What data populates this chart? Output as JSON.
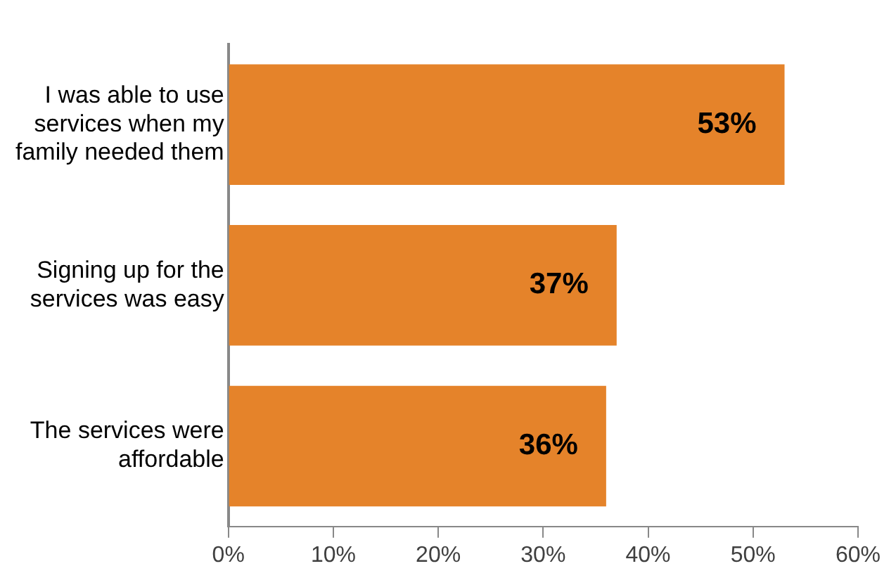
{
  "chart_data": {
    "type": "bar",
    "orientation": "horizontal",
    "categories": [
      "I was able to use services when my family needed them",
      "Signing up for the services was easy",
      "The services were affordable"
    ],
    "values": [
      53,
      37,
      36
    ],
    "value_labels": [
      "53%",
      "37%",
      "36%"
    ],
    "color": "#e5832a",
    "xlim": [
      0,
      60
    ],
    "xticks": [
      {
        "value": 0,
        "label": "0%"
      },
      {
        "value": 10,
        "label": "10%"
      },
      {
        "value": 20,
        "label": "20%"
      },
      {
        "value": 30,
        "label": "30%"
      },
      {
        "value": 40,
        "label": "40%"
      },
      {
        "value": 50,
        "label": "50%"
      },
      {
        "value": 60,
        "label": "60%"
      }
    ],
    "grid": false,
    "legend": false
  }
}
